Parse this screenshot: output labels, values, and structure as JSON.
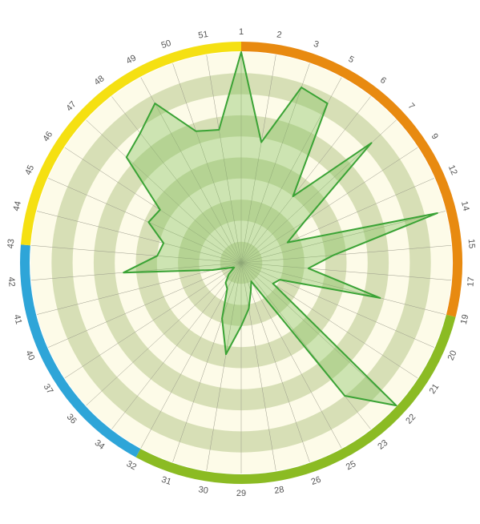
{
  "chart_data": {
    "type": "radar",
    "title": "",
    "categories": [
      "1",
      "2",
      "3",
      "5",
      "6",
      "7",
      "9",
      "12",
      "14",
      "15",
      "17",
      "19",
      "20",
      "21",
      "22",
      "23",
      "25",
      "26",
      "28",
      "29",
      "30",
      "31",
      "32",
      "34",
      "36",
      "37",
      "40",
      "41",
      "42",
      "43",
      "44",
      "45",
      "46",
      "47",
      "48",
      "49",
      "50",
      "51"
    ],
    "series": [
      {
        "values": [
          100,
          58,
          88,
          86,
          40,
          84,
          36,
          24,
          96,
          44,
          32,
          68,
          20,
          18,
          100,
          80,
          10,
          14,
          22,
          30,
          44,
          28,
          14,
          12,
          8,
          4,
          6,
          14,
          56,
          40,
          38,
          48,
          46,
          74,
          78,
          86,
          66,
          64
        ]
      }
    ],
    "rlim": [
      0,
      100
    ],
    "rings": 10,
    "colors": {
      "outer_segments": [
        {
          "color": "#e88a10",
          "categories": [
            "1",
            "2",
            "3",
            "5",
            "6",
            "7",
            "9",
            "12",
            "14",
            "15",
            "17"
          ]
        },
        {
          "color": "#8bbb23",
          "categories": [
            "19",
            "20",
            "21",
            "22",
            "23",
            "25",
            "26",
            "28",
            "29",
            "30",
            "31"
          ]
        },
        {
          "color": "#2ea5d8",
          "categories": [
            "32",
            "34",
            "36",
            "37",
            "40",
            "41",
            "42"
          ]
        },
        {
          "color": "#f5e012",
          "categories": [
            "43",
            "44",
            "45",
            "46",
            "47",
            "48",
            "49",
            "50",
            "51"
          ]
        }
      ],
      "series_line": "#3aa335",
      "series_fill": "#7fbf5a",
      "ring_light": "#fdfbe8",
      "ring_dark": "#d7dfb6"
    }
  }
}
